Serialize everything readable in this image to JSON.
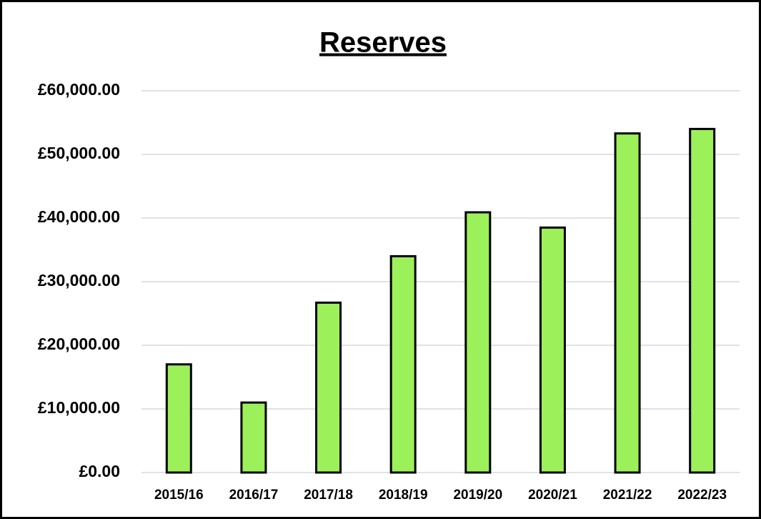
{
  "chart_data": {
    "type": "bar",
    "title": "Reserves",
    "categories": [
      "2015/16",
      "2016/17",
      "2017/18",
      "2018/19",
      "2019/20",
      "2020/21",
      "2021/22",
      "2022/23"
    ],
    "values": [
      17000,
      11000,
      26700,
      34000,
      40900,
      38500,
      53300,
      54000
    ],
    "color": "#9cf05a",
    "ylim": [
      0,
      60000
    ],
    "yticks": [
      {
        "value": 0,
        "label": "£0.00"
      },
      {
        "value": 10000,
        "label": "£10,000.00"
      },
      {
        "value": 20000,
        "label": "£20,000.00"
      },
      {
        "value": 30000,
        "label": "£30,000.00"
      },
      {
        "value": 40000,
        "label": "£40,000.00"
      },
      {
        "value": 50000,
        "label": "£50,000.00"
      },
      {
        "value": 60000,
        "label": "£60,000.00"
      }
    ],
    "grid": true
  }
}
